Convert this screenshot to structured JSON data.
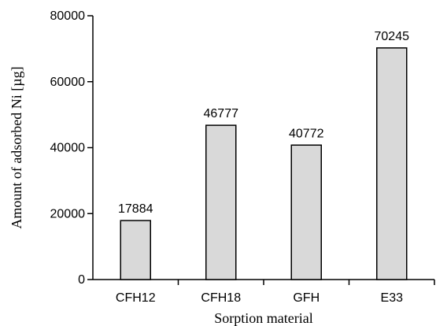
{
  "chart_data": {
    "type": "bar",
    "categories": [
      "CFH12",
      "CFH18",
      "GFH",
      "E33"
    ],
    "values": [
      17884,
      46777,
      40772,
      70245
    ],
    "data_labels": [
      "17884",
      "46777",
      "40772",
      "70245"
    ],
    "xlabel": "Sorption material",
    "ylabel": "Amount of adsorbed Ni  [µg]",
    "ylim": [
      0,
      80000
    ],
    "yticks": [
      0,
      20000,
      40000,
      60000,
      80000
    ],
    "ytick_labels": [
      "0",
      "20000",
      "40000",
      "60000",
      "80000"
    ],
    "grid": false,
    "bar_color": "#d9d9d9",
    "bar_edge_color": "#000000"
  }
}
